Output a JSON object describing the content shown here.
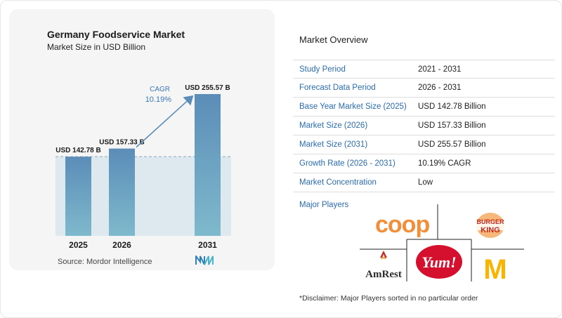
{
  "chart_data": {
    "type": "bar",
    "title": "Germany Foodservice Market",
    "subtitle": "Market Size in USD Billion",
    "categories": [
      "2025",
      "2026",
      "2031"
    ],
    "values": [
      142.78,
      157.33,
      255.57
    ],
    "value_labels": [
      "USD 142.78 B",
      "USD 157.33 B",
      "USD 255.57 B"
    ],
    "cagr_label": "CAGR",
    "cagr_value": "10.19%",
    "ylim": [
      0,
      260
    ],
    "colors": {
      "bar_top": "#5b8db8",
      "bar_bottom": "#7fb9cc",
      "band": "#dde8ef",
      "arrow": "#5b8db8",
      "cagr_text": "#3a78b5"
    }
  },
  "source": "Source:  Mordor Intelligence",
  "overview": {
    "title": "Market Overview",
    "rows": [
      {
        "label": "Study Period",
        "value": "2021 - 2031"
      },
      {
        "label": "Forecast Data Period",
        "value": "2026 - 2031"
      },
      {
        "label": "Base Year Market Size (2025)",
        "value": "USD 142.78 Billion"
      },
      {
        "label": "Market Size (2026)",
        "value": "USD 157.33 Billion"
      },
      {
        "label": "Market Size (2031)",
        "value": "USD 255.57 Billion"
      },
      {
        "label": "Growth Rate (2026 - 2031)",
        "value": "10.19% CAGR"
      },
      {
        "label": "Market Concentration",
        "value": "Low"
      }
    ]
  },
  "players": {
    "title": "Major Players",
    "logos": {
      "coop": "coop",
      "burger_king_1": "BURGER",
      "burger_king_2": "KING",
      "amrest": "AmRest",
      "yum": "Yum!",
      "mcdonalds": "M"
    }
  },
  "disclaimer": "*Disclaimer: Major Players sorted in no particular order"
}
